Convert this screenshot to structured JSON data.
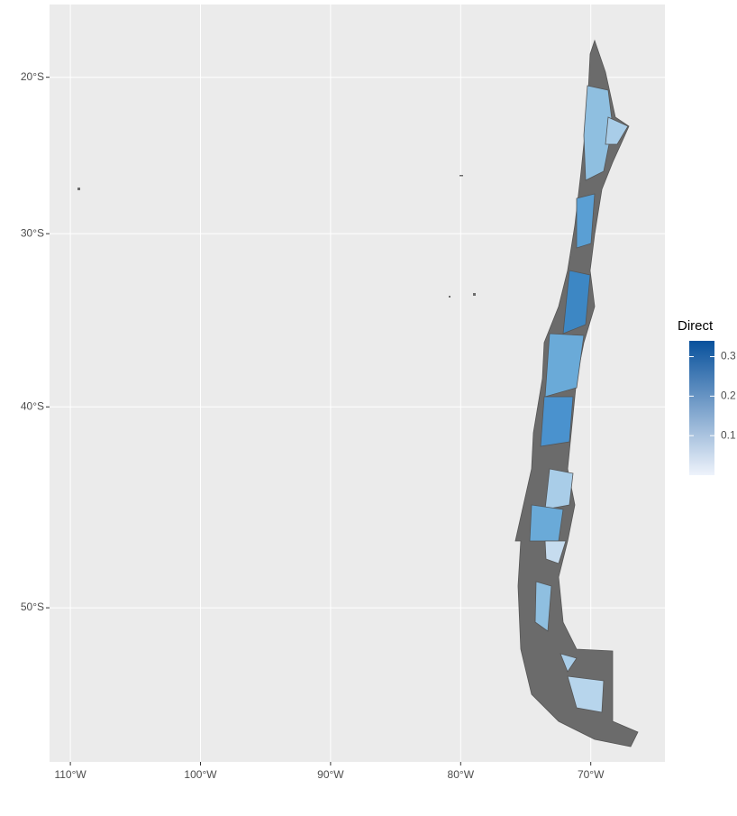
{
  "chart_data": {
    "type": "map",
    "xlim": [
      -111.6,
      -64.3
    ],
    "xticks": [
      {
        "value": -110,
        "label": "110°W"
      },
      {
        "value": -100,
        "label": "100°W"
      },
      {
        "value": -90,
        "label": "90°W"
      },
      {
        "value": -80,
        "label": "80°W"
      },
      {
        "value": -70,
        "label": "70°W"
      }
    ],
    "ylim": [
      -56.5,
      -15.1
    ],
    "yticks": [
      {
        "value": -20,
        "label": "20°S"
      },
      {
        "value": -30,
        "label": "30°S"
      },
      {
        "value": -40,
        "label": "40°S"
      },
      {
        "value": -50,
        "label": "50°S"
      }
    ],
    "grid": true,
    "legend": {
      "title": "Direct",
      "limits": [
        0.0,
        0.34
      ],
      "ticks": [
        0.1,
        0.2,
        0.3
      ],
      "colors": [
        "#eef3fb",
        "#08519c"
      ]
    }
  }
}
